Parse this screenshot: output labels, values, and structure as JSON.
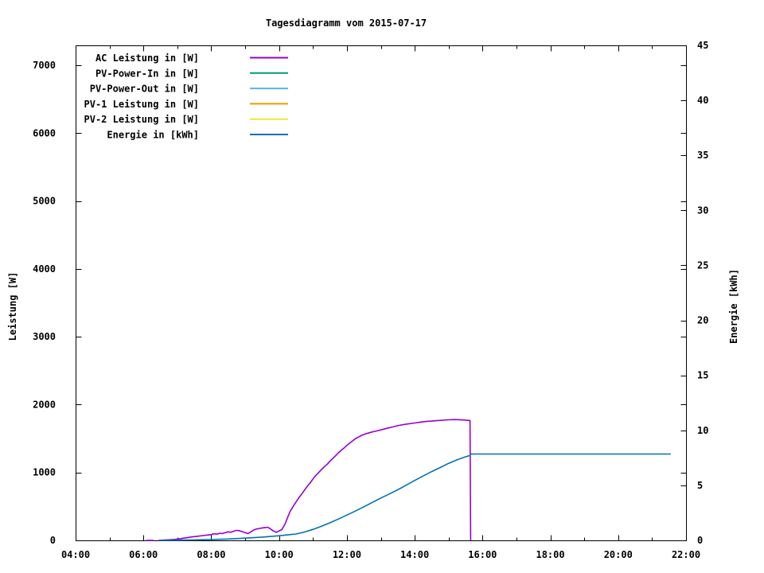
{
  "chart_data": {
    "type": "line",
    "title": "Tagesdiagramm vom 2015-07-17",
    "background_color": "#ffffff",
    "frame_color": "#000000",
    "grid": false,
    "x_axis": {
      "range_hours": [
        4,
        22
      ],
      "major_tick_labels": [
        "04:00",
        "06:00",
        "08:00",
        "10:00",
        "12:00",
        "14:00",
        "16:00",
        "18:00",
        "20:00",
        "22:00"
      ],
      "major_tick_hours": [
        4,
        6,
        8,
        10,
        12,
        14,
        16,
        18,
        20,
        22
      ],
      "minor_tick_hours": [
        5,
        7,
        9,
        11,
        13,
        15,
        17,
        19,
        21
      ],
      "mirrored_on_top": true
    },
    "y_left": {
      "label": "Leistung [W]",
      "ticks": [
        0,
        1000,
        2000,
        3000,
        4000,
        5000,
        6000,
        7000
      ],
      "range": [
        0,
        7293
      ],
      "mirrored_on_right": true
    },
    "y_right": {
      "label": "Energie [kWh]",
      "ticks": [
        0,
        5,
        10,
        15,
        20,
        25,
        30,
        35,
        40,
        45
      ],
      "range": [
        0,
        45
      ]
    },
    "legend": {
      "position": "top-left-inside",
      "entries": [
        {
          "label": "AC Leistung in [W]",
          "color": "#9400d3"
        },
        {
          "label": "PV-Power-In in [W]",
          "color": "#009e73"
        },
        {
          "label": "PV-Power-Out in [W]",
          "color": "#56b4e9"
        },
        {
          "label": "PV-1 Leistung in [W]",
          "color": "#e69f00"
        },
        {
          "label": "PV-2 Leistung in [W]",
          "color": "#f0e442"
        },
        {
          "label": "Energie in [kWh]",
          "color": "#0072b2"
        }
      ]
    },
    "series": [
      {
        "name": "AC Leistung in [W]",
        "color": "#9400d3",
        "axis": "left",
        "points": [
          [
            6.08,
            0
          ],
          [
            6.2,
            0
          ],
          [
            6.3,
            0
          ],
          null,
          [
            6.45,
            0
          ],
          [
            6.58,
            4
          ],
          [
            6.75,
            8
          ],
          [
            6.92,
            14
          ],
          [
            7.08,
            25
          ],
          [
            7.25,
            38
          ],
          [
            7.42,
            50
          ],
          [
            7.58,
            60
          ],
          [
            7.75,
            70
          ],
          [
            7.92,
            80
          ],
          [
            8.0,
            85
          ],
          [
            8.08,
            97
          ],
          [
            8.17,
            92
          ],
          [
            8.25,
            106
          ],
          [
            8.33,
            100
          ],
          [
            8.42,
            116
          ],
          [
            8.5,
            126
          ],
          [
            8.58,
            120
          ],
          [
            8.67,
            136
          ],
          [
            8.75,
            148
          ],
          [
            8.83,
            142
          ],
          [
            8.92,
            128
          ],
          [
            9.0,
            114
          ],
          [
            9.08,
            100
          ],
          [
            9.17,
            126
          ],
          [
            9.25,
            152
          ],
          [
            9.33,
            166
          ],
          [
            9.42,
            176
          ],
          [
            9.5,
            183
          ],
          [
            9.58,
            189
          ],
          [
            9.67,
            193
          ],
          [
            9.75,
            168
          ],
          [
            9.83,
            138
          ],
          [
            9.92,
            118
          ],
          [
            10.0,
            140
          ],
          [
            10.08,
            158
          ],
          [
            10.17,
            235
          ],
          [
            10.25,
            335
          ],
          [
            10.33,
            430
          ],
          [
            10.42,
            505
          ],
          [
            10.5,
            565
          ],
          [
            10.58,
            625
          ],
          [
            10.67,
            685
          ],
          [
            10.75,
            740
          ],
          [
            10.83,
            795
          ],
          [
            10.92,
            850
          ],
          [
            11.0,
            905
          ],
          [
            11.08,
            955
          ],
          [
            11.17,
            1000
          ],
          [
            11.25,
            1042
          ],
          [
            11.33,
            1082
          ],
          [
            11.42,
            1122
          ],
          [
            11.5,
            1165
          ],
          [
            11.58,
            1205
          ],
          [
            11.67,
            1248
          ],
          [
            11.75,
            1290
          ],
          [
            11.83,
            1325
          ],
          [
            11.92,
            1362
          ],
          [
            12.0,
            1400
          ],
          [
            12.08,
            1432
          ],
          [
            12.17,
            1466
          ],
          [
            12.25,
            1498
          ],
          [
            12.33,
            1520
          ],
          [
            12.42,
            1544
          ],
          [
            12.5,
            1560
          ],
          [
            12.58,
            1574
          ],
          [
            12.67,
            1586
          ],
          [
            12.75,
            1598
          ],
          [
            12.83,
            1606
          ],
          [
            12.92,
            1618
          ],
          [
            13.0,
            1628
          ],
          [
            13.17,
            1650
          ],
          [
            13.33,
            1670
          ],
          [
            13.5,
            1690
          ],
          [
            13.67,
            1706
          ],
          [
            13.83,
            1718
          ],
          [
            14.0,
            1730
          ],
          [
            14.17,
            1742
          ],
          [
            14.33,
            1752
          ],
          [
            14.5,
            1758
          ],
          [
            14.67,
            1766
          ],
          [
            14.83,
            1770
          ],
          [
            15.0,
            1776
          ],
          [
            15.17,
            1780
          ],
          [
            15.33,
            1778
          ],
          [
            15.5,
            1772
          ],
          [
            15.63,
            1766
          ],
          [
            15.65,
            0
          ]
        ]
      },
      {
        "name": "PV-Power-In in [W]",
        "color": "#009e73",
        "axis": "left",
        "points": []
      },
      {
        "name": "PV-Power-Out in [W]",
        "color": "#56b4e9",
        "axis": "left",
        "points": []
      },
      {
        "name": "PV-1 Leistung in [W]",
        "color": "#e69f00",
        "axis": "left",
        "points": []
      },
      {
        "name": "PV-2 Leistung in [W]",
        "color": "#f0e442",
        "axis": "left",
        "points": []
      },
      {
        "name": "Energie in [kWh]",
        "color": "#0072b2",
        "axis": "right",
        "points": [
          [
            6.5,
            0.0
          ],
          [
            7.0,
            0.02
          ],
          [
            7.5,
            0.04
          ],
          [
            8.0,
            0.08
          ],
          [
            8.5,
            0.12
          ],
          [
            9.0,
            0.2
          ],
          [
            9.5,
            0.3
          ],
          [
            10.0,
            0.42
          ],
          [
            10.25,
            0.5
          ],
          [
            10.5,
            0.58
          ],
          [
            10.75,
            0.76
          ],
          [
            11.0,
            1.0
          ],
          [
            11.25,
            1.28
          ],
          [
            11.5,
            1.6
          ],
          [
            11.75,
            1.94
          ],
          [
            12.0,
            2.3
          ],
          [
            12.25,
            2.66
          ],
          [
            12.5,
            3.05
          ],
          [
            12.75,
            3.45
          ],
          [
            13.0,
            3.85
          ],
          [
            13.25,
            4.22
          ],
          [
            13.5,
            4.6
          ],
          [
            13.75,
            5.02
          ],
          [
            14.0,
            5.45
          ],
          [
            14.25,
            5.85
          ],
          [
            14.5,
            6.25
          ],
          [
            14.75,
            6.62
          ],
          [
            15.0,
            7.0
          ],
          [
            15.25,
            7.32
          ],
          [
            15.5,
            7.6
          ],
          [
            15.63,
            7.72
          ],
          [
            15.65,
            7.85
          ],
          [
            21.55,
            7.85
          ]
        ]
      }
    ]
  }
}
